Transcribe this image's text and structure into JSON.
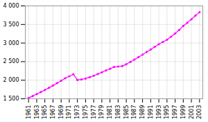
{
  "chart_data": {
    "type": "line",
    "x": [
      1961,
      1962,
      1963,
      1964,
      1965,
      1966,
      1967,
      1968,
      1969,
      1970,
      1971,
      1972,
      1973,
      1974,
      1975,
      1976,
      1977,
      1978,
      1979,
      1980,
      1981,
      1982,
      1983,
      1984,
      1985,
      1986,
      1987,
      1988,
      1989,
      1990,
      1991,
      1992,
      1993,
      1994,
      1995,
      1996,
      1997,
      1998,
      1999,
      2000,
      2001,
      2002,
      2003
    ],
    "values": [
      1521,
      1572,
      1625,
      1680,
      1737,
      1796,
      1857,
      1921,
      1987,
      2055,
      2106,
      2159,
      2006,
      2021,
      2045,
      2080,
      2120,
      2165,
      2213,
      2261,
      2308,
      2355,
      2368,
      2380,
      2430,
      2493,
      2555,
      2620,
      2688,
      2760,
      2826,
      2899,
      2968,
      3030,
      3090,
      3170,
      3257,
      3352,
      3460,
      3546,
      3640,
      3740,
      3830
    ],
    "color": "#ff00ff",
    "marker": "circle",
    "xlim": [
      1960.2,
      2003.8
    ],
    "xticks": [
      1961,
      1963,
      1965,
      1967,
      1969,
      1971,
      1973,
      1975,
      1977,
      1979,
      1981,
      1983,
      1985,
      1987,
      1989,
      1991,
      1993,
      1995,
      1997,
      1999,
      2001,
      2003
    ],
    "ylim": [
      1500,
      4000
    ],
    "yticks": [
      {
        "value": 1500,
        "label": "1 500"
      },
      {
        "value": 2000,
        "label": "2 000"
      },
      {
        "value": 2500,
        "label": "2 500"
      },
      {
        "value": 3000,
        "label": "3 000"
      },
      {
        "value": 3500,
        "label": "3 500"
      },
      {
        "value": 4000,
        "label": "4 000"
      }
    ],
    "grid": true
  }
}
